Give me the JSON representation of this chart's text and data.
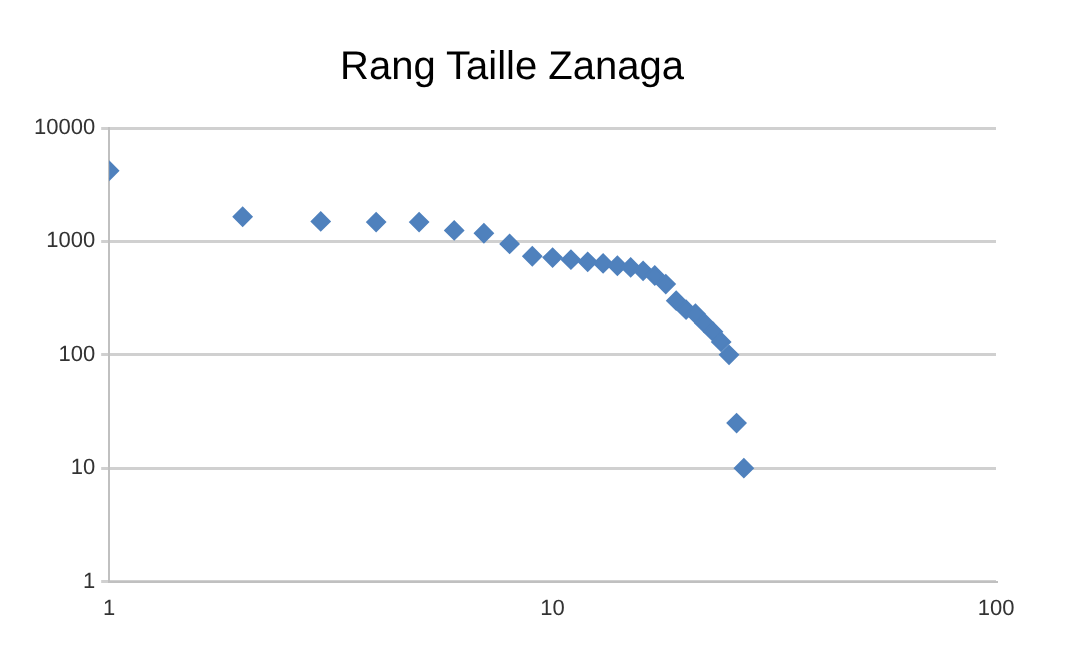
{
  "chart_data": {
    "type": "scatter",
    "title": "Rang Taille Zanaga",
    "log": "xy",
    "marker": "diamond",
    "grid": "y",
    "legend": false,
    "xlim": [
      1,
      100
    ],
    "xticks": [
      1,
      10,
      100
    ],
    "ylim": [
      1,
      10000
    ],
    "yticks": [
      1,
      10,
      100,
      1000,
      10000
    ],
    "series": [
      {
        "color": "#4f81bd",
        "x": [
          1,
          2,
          3,
          4,
          5,
          6,
          7,
          8,
          9,
          10,
          11,
          12,
          13,
          14,
          15,
          16,
          17,
          18,
          19,
          20,
          21,
          22,
          23,
          24,
          25,
          26,
          27
        ],
        "values": [
          4200,
          1650,
          1500,
          1480,
          1480,
          1250,
          1180,
          950,
          740,
          720,
          690,
          660,
          640,
          610,
          590,
          550,
          500,
          420,
          300,
          250,
          230,
          190,
          160,
          130,
          100,
          25,
          10
        ]
      }
    ]
  }
}
